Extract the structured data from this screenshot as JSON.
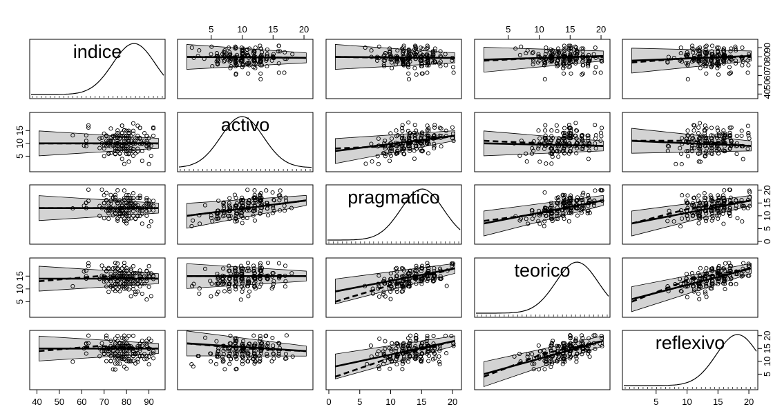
{
  "chart_data": {
    "type": "scatter",
    "kind": "scatterplot-matrix",
    "variables": [
      {
        "name": "indice",
        "range": [
          38,
          96
        ],
        "ticks": [
          40,
          50,
          60,
          70,
          80,
          90
        ],
        "density_peak": 83
      },
      {
        "name": "activo",
        "range": [
          0,
          21
        ],
        "ticks": [
          5,
          10,
          15,
          20
        ],
        "density_peak": 10
      },
      {
        "name": "pragmatico",
        "range": [
          0,
          21
        ],
        "ticks": [
          0,
          5,
          10,
          15,
          20
        ],
        "density_peak": 15
      },
      {
        "name": "teorico",
        "range": [
          0,
          21
        ],
        "ticks": [
          5,
          10,
          15
        ],
        "density_peak": 16
      },
      {
        "name": "reflexivo",
        "range": [
          0,
          21
        ],
        "ticks": [
          5,
          10,
          15,
          20
        ],
        "density_peak": 18
      }
    ],
    "axis_ticks": {
      "bottom": [
        {
          "col": 0,
          "labels": [
            "40",
            "50",
            "60",
            "70",
            "80",
            "90"
          ],
          "values": [
            40,
            50,
            60,
            70,
            80,
            90
          ]
        },
        {
          "col": 2,
          "labels": [
            "0",
            "5",
            "10",
            "15",
            "20"
          ],
          "values": [
            0,
            5,
            10,
            15,
            20
          ]
        },
        {
          "col": 4,
          "labels": [
            "5",
            "10",
            "15",
            "20"
          ],
          "values": [
            5,
            10,
            15,
            20
          ]
        }
      ],
      "top": [
        {
          "col": 1,
          "labels": [
            "5",
            "10",
            "15",
            "20"
          ],
          "values": [
            5,
            10,
            15,
            20
          ]
        },
        {
          "col": 3,
          "labels": [
            "5",
            "10",
            "15",
            "20"
          ],
          "values": [
            5,
            10,
            15,
            20
          ]
        }
      ],
      "left": [
        {
          "row": 1,
          "labels": [
            "5",
            "10",
            "15"
          ],
          "values": [
            5,
            10,
            15
          ]
        },
        {
          "row": 3,
          "labels": [
            "5",
            "10",
            "15"
          ],
          "values": [
            5,
            10,
            15
          ]
        }
      ],
      "right": [
        {
          "row": 0,
          "labels": [
            "40",
            "50",
            "60",
            "70",
            "80",
            "90"
          ],
          "values": [
            40,
            50,
            60,
            70,
            80,
            90
          ]
        },
        {
          "row": 2,
          "labels": [
            "0",
            "5",
            "10",
            "15",
            "20"
          ],
          "values": [
            0,
            5,
            10,
            15,
            20
          ]
        },
        {
          "row": 4,
          "labels": [
            "5",
            "10",
            "15",
            "20"
          ],
          "values": [
            5,
            10,
            15,
            20
          ]
        }
      ]
    },
    "fits": [
      {
        "row": 0,
        "col": 1,
        "linear": [
          80,
          79
        ],
        "smooth": [
          80,
          80,
          79
        ]
      },
      {
        "row": 0,
        "col": 2,
        "linear": [
          80,
          79
        ],
        "smooth": [
          80,
          79,
          79
        ]
      },
      {
        "row": 0,
        "col": 3,
        "linear": [
          77,
          81
        ],
        "smooth": [
          76,
          79,
          80
        ]
      },
      {
        "row": 0,
        "col": 4,
        "linear": [
          76,
          81
        ],
        "smooth": [
          74,
          79,
          80
        ]
      },
      {
        "row": 1,
        "col": 0,
        "linear": [
          10,
          10
        ],
        "smooth": [
          10,
          10,
          10
        ]
      },
      {
        "row": 1,
        "col": 2,
        "linear": [
          7,
          13
        ],
        "smooth": [
          8,
          9,
          13
        ]
      },
      {
        "row": 1,
        "col": 3,
        "linear": [
          10,
          9
        ],
        "smooth": [
          11,
          10,
          9
        ]
      },
      {
        "row": 1,
        "col": 4,
        "linear": [
          11,
          9
        ],
        "smooth": [
          11,
          11,
          9
        ]
      },
      {
        "row": 2,
        "col": 0,
        "linear": [
          13,
          13
        ],
        "smooth": [
          13,
          13,
          13
        ]
      },
      {
        "row": 2,
        "col": 1,
        "linear": [
          10,
          16
        ],
        "smooth": [
          10,
          13,
          16
        ]
      },
      {
        "row": 2,
        "col": 3,
        "linear": [
          7,
          16
        ],
        "smooth": [
          8,
          11,
          16
        ]
      },
      {
        "row": 2,
        "col": 4,
        "linear": [
          7,
          16
        ],
        "smooth": [
          7,
          13,
          16
        ]
      },
      {
        "row": 3,
        "col": 0,
        "linear": [
          14,
          14
        ],
        "smooth": [
          13,
          15,
          14
        ]
      },
      {
        "row": 3,
        "col": 1,
        "linear": [
          15,
          15
        ],
        "smooth": [
          15,
          15,
          15
        ]
      },
      {
        "row": 3,
        "col": 2,
        "linear": [
          9,
          18
        ],
        "smooth": [
          5,
          12,
          18
        ]
      },
      {
        "row": 3,
        "col": 4,
        "linear": [
          6,
          18
        ],
        "smooth": [
          5,
          14,
          18
        ]
      },
      {
        "row": 4,
        "col": 0,
        "linear": [
          15,
          15
        ],
        "smooth": [
          14,
          16,
          15
        ]
      },
      {
        "row": 4,
        "col": 1,
        "linear": [
          17,
          14
        ],
        "smooth": [
          17,
          15,
          14
        ]
      },
      {
        "row": 4,
        "col": 2,
        "linear": [
          8,
          18
        ],
        "smooth": [
          4,
          12,
          18
        ]
      },
      {
        "row": 4,
        "col": 3,
        "linear": [
          5,
          18
        ],
        "smooth": [
          4,
          13,
          18
        ]
      }
    ],
    "grid": false,
    "legend": "none"
  }
}
